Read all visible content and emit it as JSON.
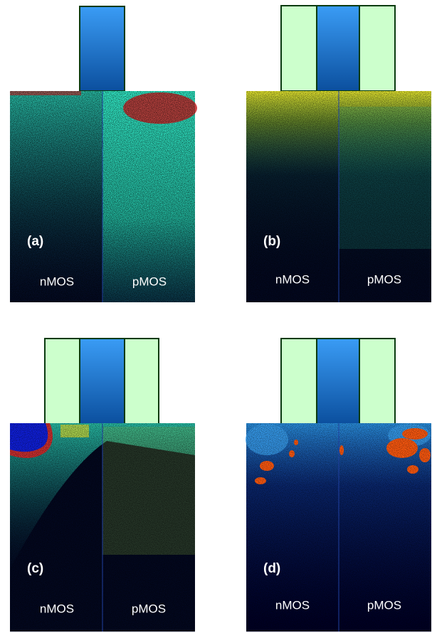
{
  "panels": [
    {
      "label": "(a)",
      "left": "nMOS",
      "right": "pMOS"
    },
    {
      "label": "(b)",
      "left": "nMOS",
      "right": "pMOS"
    },
    {
      "label": "(c)",
      "left": "nMOS",
      "right": "pMOS"
    },
    {
      "label": "(d)",
      "left": "nMOS",
      "right": "pMOS"
    }
  ]
}
